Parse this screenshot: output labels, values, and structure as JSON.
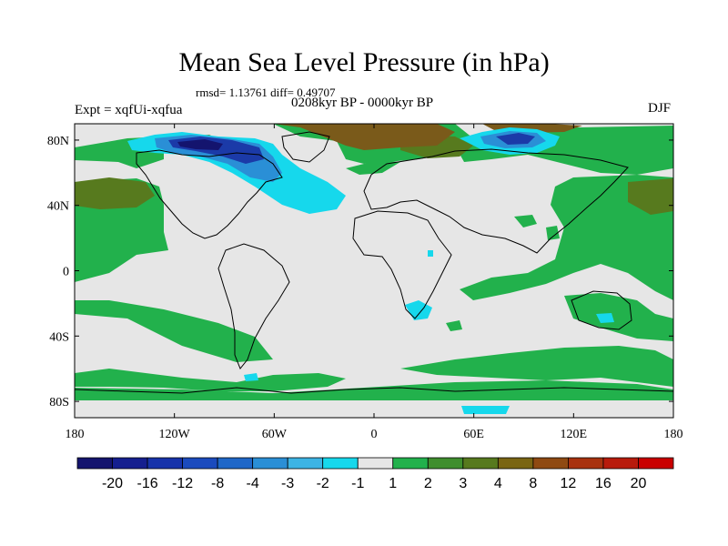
{
  "header": {
    "title": "Mean Sea Level Pressure (in hPa)",
    "stats": "rmsd= 1.13761 diff= 0.49707",
    "period": "0208kyr BP - 0000kyr BP",
    "experiment": "Expt = xqfUi-xqfua",
    "season": "DJF"
  },
  "axes": {
    "x_ticks": [
      "180",
      "120W",
      "60W",
      "0",
      "60E",
      "120E",
      "180"
    ],
    "y_ticks": [
      "80N",
      "40N",
      "0",
      "40S",
      "80S"
    ]
  },
  "colorbar": {
    "labels": [
      "-20",
      "-16",
      "-12",
      "-8",
      "-4",
      "-3",
      "-2",
      "-1",
      "1",
      "2",
      "3",
      "4",
      "8",
      "12",
      "16",
      "20"
    ],
    "colors": [
      "#14146e",
      "#151f8f",
      "#1733aa",
      "#1b4bbe",
      "#1f67c8",
      "#2a8fd6",
      "#3cb4e4",
      "#16d8ec",
      "#e6e6e6",
      "#22b14c",
      "#3f8e2e",
      "#577a1e",
      "#7a6513",
      "#8f4a12",
      "#a8320f",
      "#b81b0c",
      "#c90000"
    ]
  },
  "map": {
    "background_color": "#e6e6e6",
    "positive_color": "#22b14c",
    "strong_positive_color": "#577a1e",
    "brown_color": "#7a5a1a",
    "negative_light_color": "#16d8ec",
    "negative_mid_color": "#2a8fd6",
    "negative_strong_color": "#1b3aa8"
  }
}
